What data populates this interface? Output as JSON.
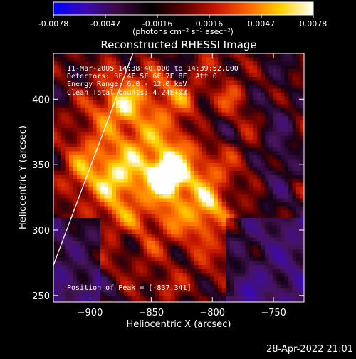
{
  "colorbar": {
    "tick_labels": [
      "-0.0078",
      "-0.0047",
      "-0.0016",
      "0.0016",
      "0.0047",
      "0.0078"
    ],
    "units_label": "(photons cm⁻² s⁻¹ asec⁻²)",
    "stops": [
      "#0000ff",
      "#3a0ab0",
      "#3c0a3c",
      "#000000",
      "#5a0000",
      "#c81400",
      "#ff6400",
      "#ffd200",
      "#ffffff"
    ]
  },
  "chart_data": {
    "type": "heatmap",
    "title": "Reconstructed RHESSI Image",
    "xlabel": "Heliocentric X (arcsec)",
    "ylabel": "Heliocentric Y (arcsec)",
    "xlim": [
      -930,
      -725
    ],
    "ylim": [
      245,
      435
    ],
    "x_ticks": [
      -900,
      -850,
      -800,
      -750
    ],
    "y_ticks": [
      250,
      300,
      350,
      400
    ],
    "x_tick_labels": [
      "−900",
      "−850",
      "−800",
      "−750"
    ],
    "y_tick_labels": [
      "250",
      "300",
      "350",
      "400"
    ],
    "value_range": [
      -0.0078,
      0.0078
    ],
    "peak": {
      "x": -837,
      "y": 341,
      "value": 0.0078
    },
    "limb_line": [
      [
        -930,
        273
      ],
      [
        -865,
        435
      ]
    ],
    "annotations": {
      "time": "11-Mar-2005 14:38:40.000 to 14:39:52.000",
      "detectors": "Detectors: 3F 4F 5F 6F 7F 8F, Att 0",
      "energy": "Energy Range: 6.0 - 12.0 keV",
      "method": "Clean     Total counts: 4.24E+03",
      "peak_label": "Position of Peak = [-837,341]"
    }
  },
  "footer": {
    "timestamp": "28-Apr-2022 21:01"
  }
}
